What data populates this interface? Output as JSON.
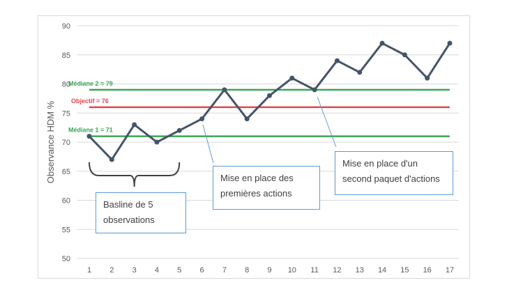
{
  "chart_data": {
    "type": "line",
    "ylabel": "Observance HDM %",
    "xlabel": "",
    "ylim": [
      50,
      90
    ],
    "yticks": [
      50,
      55,
      60,
      65,
      70,
      75,
      80,
      85,
      90
    ],
    "x": [
      1,
      2,
      3,
      4,
      5,
      6,
      7,
      8,
      9,
      10,
      11,
      12,
      13,
      14,
      15,
      16,
      17
    ],
    "series": [
      {
        "values": [
          71,
          67,
          73,
          70,
          72,
          74,
          79,
          74,
          78,
          81,
          79,
          84,
          82,
          87,
          85,
          81,
          87
        ],
        "color": "#44546a"
      }
    ],
    "grid": true,
    "reference_lines": [
      {
        "label": "Médiane 2 = 79",
        "value": 79,
        "x_range": [
          1,
          17
        ],
        "color": "#3aa655"
      },
      {
        "label": "Objectif = 76",
        "value": 76,
        "x_range": [
          1,
          17
        ],
        "color": "#e0474c"
      },
      {
        "label": "Médiane 1 = 71",
        "value": 71,
        "x_range": [
          1,
          17
        ],
        "color": "#3aa655"
      }
    ],
    "annotations": [
      {
        "text": "Basline de 5 observations",
        "x_range": [
          1,
          5
        ]
      },
      {
        "text": "Mise en place des premières actions",
        "x": 6
      },
      {
        "text": "Mise en place  d'un second paquet d'actions",
        "x": 11
      }
    ]
  }
}
